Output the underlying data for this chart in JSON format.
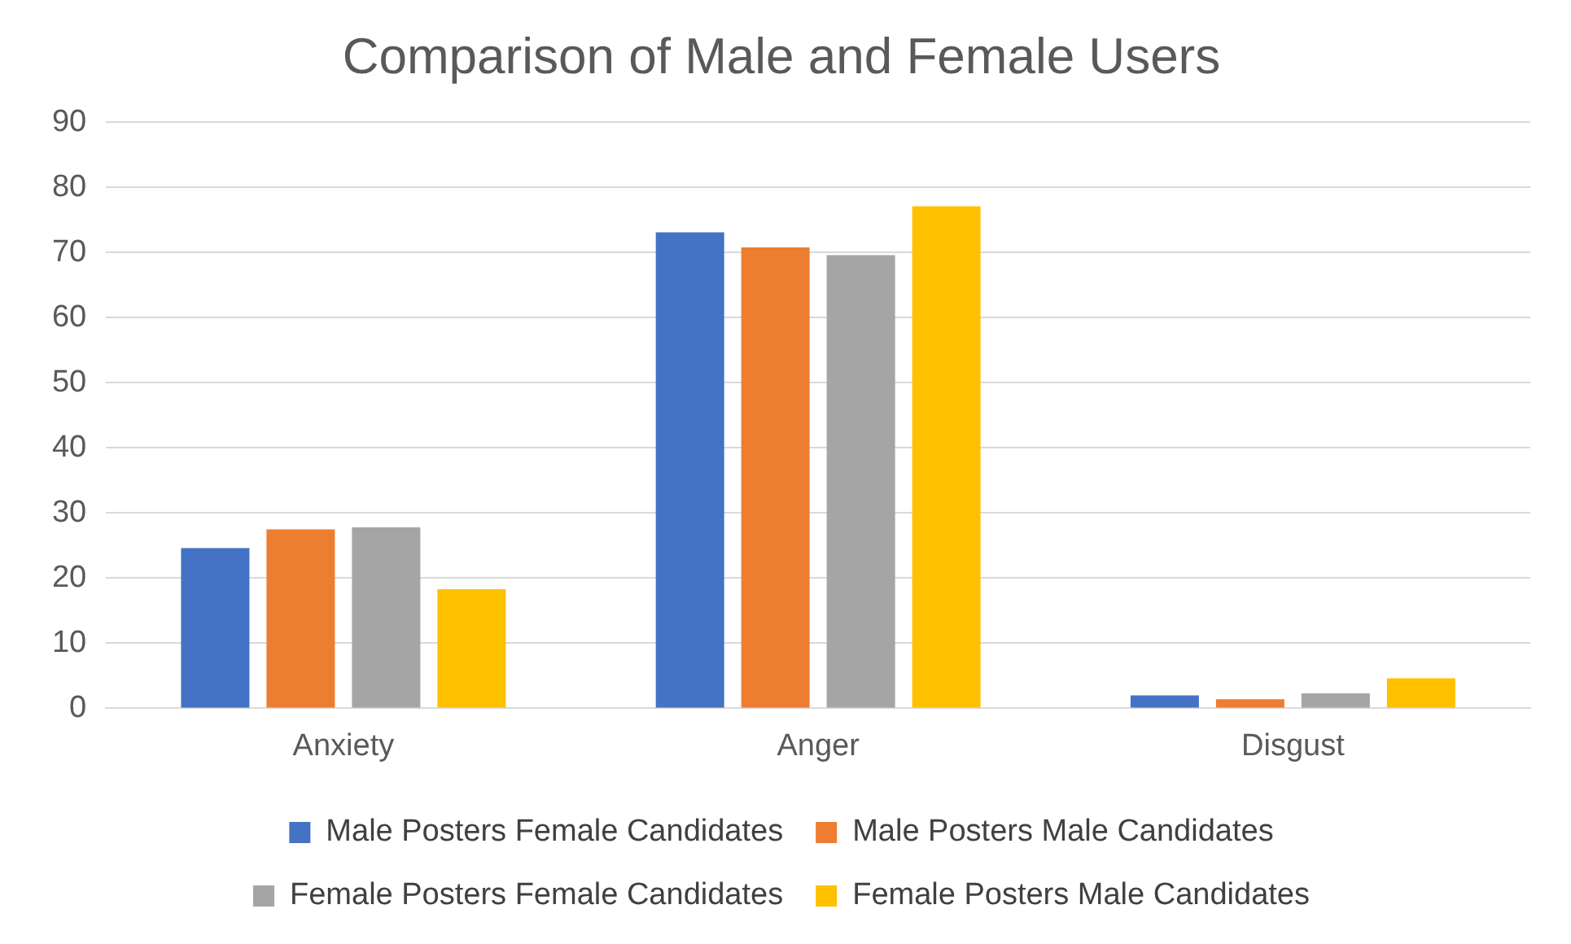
{
  "chart_data": {
    "type": "bar",
    "title": "Comparison of Male and Female Users",
    "categories": [
      "Anxiety",
      "Anger",
      "Disgust"
    ],
    "series": [
      {
        "name": "Male Posters Female Candidates",
        "color": "#4472c4",
        "values": [
          24.6,
          73.1,
          2.0
        ]
      },
      {
        "name": "Male Posters Male Candidates",
        "color": "#ed7d31",
        "values": [
          27.5,
          70.8,
          1.4
        ]
      },
      {
        "name": "Female Posters Female Candidates",
        "color": "#a5a5a5",
        "values": [
          27.8,
          69.6,
          2.3
        ]
      },
      {
        "name": "Female Posters Male Candidates",
        "color": "#ffc000",
        "values": [
          18.3,
          77.1,
          4.6
        ]
      }
    ],
    "ylim": [
      0,
      90
    ],
    "yticks": [
      0,
      10,
      20,
      30,
      40,
      50,
      60,
      70,
      80,
      90
    ],
    "grid": "y",
    "legend": "bottom"
  }
}
